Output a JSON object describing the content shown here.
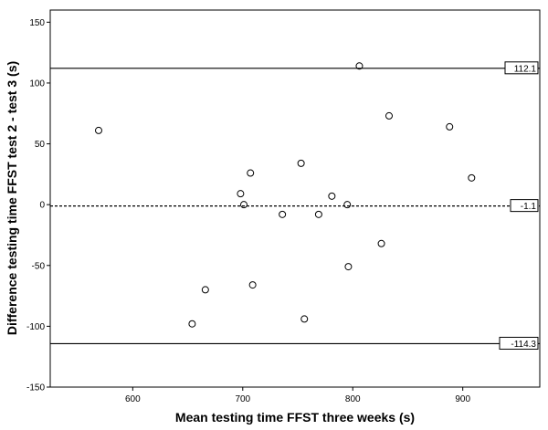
{
  "chart_data": {
    "type": "scatter",
    "title": "",
    "xlabel": "Mean testing time FFST three weeks (s)",
    "ylabel": "Difference testing time FFST test 2 - test 3 (s)",
    "xlim": [
      525,
      970
    ],
    "ylim": [
      -150,
      160
    ],
    "xticks": [
      600,
      700,
      800,
      900
    ],
    "yticks": [
      -150,
      -100,
      -50,
      0,
      50,
      100,
      150
    ],
    "grid": false,
    "reference_lines": [
      {
        "value": 112.1,
        "label": "112.1",
        "style": "solid"
      },
      {
        "value": -1.1,
        "label": "-1.1",
        "style": "dashed"
      },
      {
        "value": -114.3,
        "label": "-114.3",
        "style": "solid"
      }
    ],
    "points": [
      {
        "x": 569,
        "y": 61
      },
      {
        "x": 654,
        "y": -98
      },
      {
        "x": 666,
        "y": -70
      },
      {
        "x": 698,
        "y": 9
      },
      {
        "x": 701,
        "y": 0
      },
      {
        "x": 707,
        "y": 26
      },
      {
        "x": 709,
        "y": -66
      },
      {
        "x": 736,
        "y": -8
      },
      {
        "x": 753,
        "y": 34
      },
      {
        "x": 756,
        "y": -94
      },
      {
        "x": 769,
        "y": -8
      },
      {
        "x": 781,
        "y": 7
      },
      {
        "x": 795,
        "y": 0
      },
      {
        "x": 796,
        "y": -51
      },
      {
        "x": 806,
        "y": 114
      },
      {
        "x": 826,
        "y": -32
      },
      {
        "x": 833,
        "y": 73
      },
      {
        "x": 888,
        "y": 64
      },
      {
        "x": 908,
        "y": 22
      }
    ]
  }
}
